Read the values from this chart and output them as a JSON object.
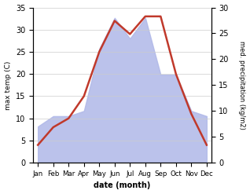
{
  "months": [
    "Jan",
    "Feb",
    "Mar",
    "Apr",
    "May",
    "Jun",
    "Jul",
    "Aug",
    "Sep",
    "Oct",
    "Nov",
    "Dec"
  ],
  "temperature": [
    4,
    8,
    10,
    15,
    25,
    32,
    29,
    33,
    33,
    20,
    11,
    4
  ],
  "precipitation": [
    7,
    9,
    9,
    10,
    22,
    28,
    24,
    28,
    17,
    17,
    10,
    9
  ],
  "temp_color": "#c0392b",
  "precip_color": "#b0b8e8",
  "left_ylim": [
    0,
    35
  ],
  "right_ylim": [
    0,
    30
  ],
  "left_yticks": [
    0,
    5,
    10,
    15,
    20,
    25,
    30,
    35
  ],
  "right_yticks": [
    0,
    5,
    10,
    15,
    20,
    25,
    30
  ],
  "left_ylabel": "max temp (C)",
  "right_ylabel": "med. precipitation (kg/m2)",
  "xlabel": "date (month)",
  "temp_linewidth": 1.8,
  "background_color": "#ffffff"
}
